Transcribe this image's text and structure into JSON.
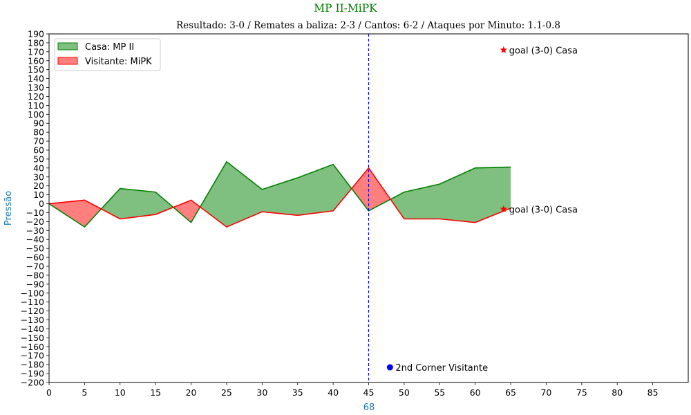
{
  "chart_data": {
    "type": "area",
    "title": "MP II-MiPK",
    "subtitle": "Resultado: 3-0 / Remates a baliza: 2-3 / Cantos: 6-2 / Ataques por Minuto: 1.1-0.8",
    "xlabel": "68",
    "ylabel": "Pressão",
    "xlim": [
      0,
      90
    ],
    "ylim": [
      -200,
      190
    ],
    "xticks": [
      0,
      5,
      10,
      15,
      20,
      25,
      30,
      35,
      40,
      45,
      50,
      55,
      60,
      65,
      70,
      75,
      80,
      85
    ],
    "ytick_step": 10,
    "grid": false,
    "legend_position": "top-left",
    "x": [
      0,
      5,
      10,
      15,
      20,
      25,
      30,
      35,
      40,
      45,
      50,
      55,
      60,
      65
    ],
    "series": [
      {
        "name": "Casa: MP II",
        "color": "#008000",
        "fill": "#7fbf7f",
        "values": [
          0,
          -26,
          17,
          13,
          -21,
          47,
          16,
          29,
          44,
          -8,
          13,
          22,
          40,
          41
        ]
      },
      {
        "name": "Visitante: MiPK",
        "color": "#ff0000",
        "fill": "#ff7f7f",
        "values": [
          0,
          4,
          -17,
          -12,
          4,
          -26,
          -9,
          -13,
          -8,
          40,
          -17,
          -17,
          -21,
          -5
        ]
      }
    ],
    "vline": {
      "x": 45,
      "color": "#0000ff"
    },
    "annotations": [
      {
        "x": 64,
        "y": 172,
        "marker": "star",
        "color": "#ff0000",
        "text": "goal (3-0) Casa"
      },
      {
        "x": 64,
        "y": -6,
        "marker": "star",
        "color": "#ff0000",
        "text": "goal (3-0) Casa"
      },
      {
        "x": 48,
        "y": -183,
        "marker": "dot",
        "color": "#0000ff",
        "text": "2nd Corner Visitante"
      }
    ],
    "colors": {
      "title": "#008000",
      "axis_label": "#1f77b4"
    }
  }
}
